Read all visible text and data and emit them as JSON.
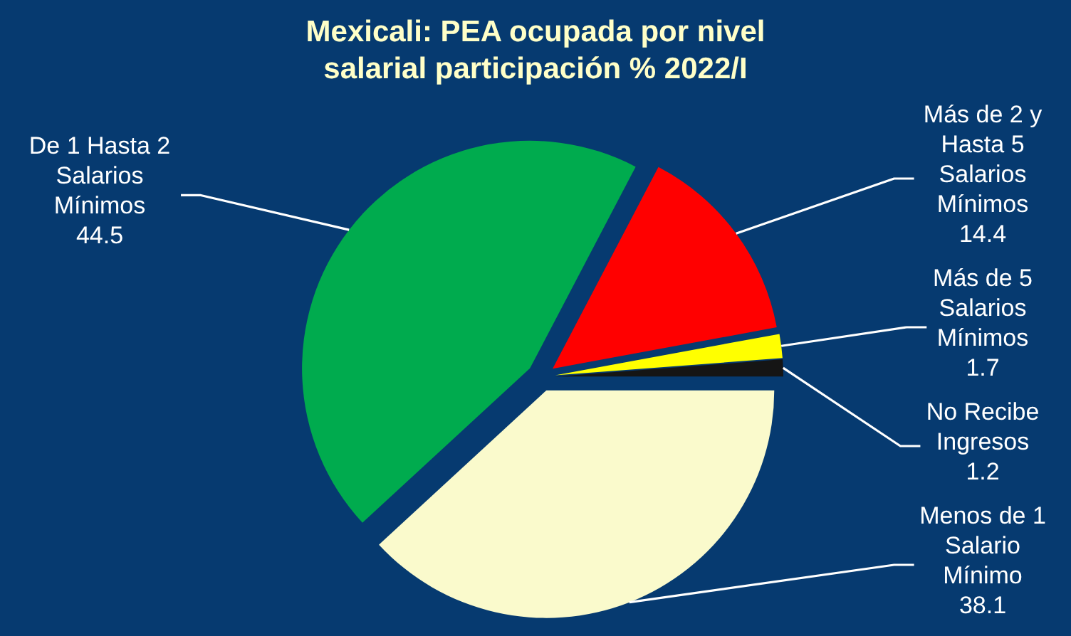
{
  "chart_data": {
    "type": "pie",
    "title": "Mexicali: PEA ocupada por nivel salarial participación % 2022/I",
    "categories": [
      "Menos de 1 Salario Mínimo",
      "De 1 Hasta 2 Salarios Mínimos",
      "Más de 2 y Hasta 5 Salarios Mínimos",
      "Más de 5 Salarios Mínimos",
      "No Recibe Ingresos"
    ],
    "values": [
      38.1,
      44.5,
      14.4,
      1.7,
      1.2
    ],
    "colors": [
      "#fafacc",
      "#00ab4e",
      "#ff0000",
      "#ffff00",
      "#151515"
    ],
    "data_labels": true
  }
}
